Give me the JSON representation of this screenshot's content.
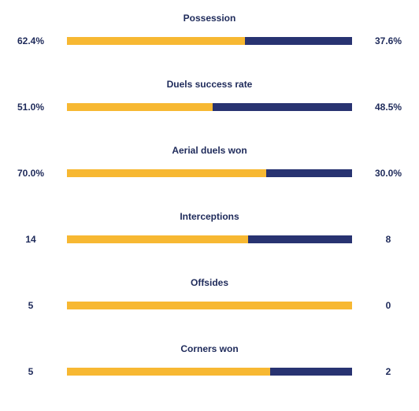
{
  "colors": {
    "home": "#f7b832",
    "away": "#283371",
    "text": "#1e2a5a"
  },
  "stats": [
    {
      "label": "Possession",
      "home": "62.4%",
      "away": "37.6%",
      "home_share": 0.624
    },
    {
      "label": "Duels success rate",
      "home": "51.0%",
      "away": "48.5%",
      "home_share": 0.51
    },
    {
      "label": "Aerial duels won",
      "home": "70.0%",
      "away": "30.0%",
      "home_share": 0.7
    },
    {
      "label": "Interceptions",
      "home": "14",
      "away": "8",
      "home_share": 0.636
    },
    {
      "label": "Offsides",
      "home": "5",
      "away": "0",
      "home_share": 1.0
    },
    {
      "label": "Corners won",
      "home": "5",
      "away": "2",
      "home_share": 0.714
    }
  ]
}
